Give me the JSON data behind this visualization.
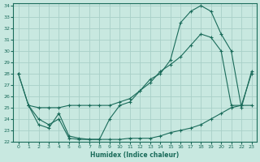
{
  "xlabel": "Humidex (Indice chaleur)",
  "bg_color": "#c8e8e0",
  "grid_color": "#a8d0c8",
  "line_color": "#1a6b5a",
  "xlim": [
    -0.5,
    23.5
  ],
  "ylim": [
    22,
    34.2
  ],
  "yticks": [
    22,
    23,
    24,
    25,
    26,
    27,
    28,
    29,
    30,
    31,
    32,
    33,
    34
  ],
  "xticks": [
    0,
    1,
    2,
    3,
    4,
    5,
    6,
    7,
    8,
    9,
    10,
    11,
    12,
    13,
    14,
    15,
    16,
    17,
    18,
    19,
    20,
    21,
    22,
    23
  ],
  "line1_x": [
    0,
    1,
    2,
    3,
    4,
    5,
    6,
    7,
    8,
    9,
    10,
    11,
    12,
    13,
    14,
    15,
    16,
    17,
    18,
    19,
    20,
    21,
    22,
    23
  ],
  "line1_y": [
    28.0,
    25.2,
    25.0,
    25.0,
    25.0,
    25.2,
    25.2,
    25.2,
    25.2,
    25.2,
    25.5,
    25.8,
    26.5,
    27.2,
    28.2,
    28.8,
    29.5,
    30.5,
    31.5,
    31.2,
    30.0,
    25.2,
    25.2,
    28.0
  ],
  "line2_x": [
    0,
    1,
    2,
    3,
    4,
    5,
    6,
    7,
    8,
    9,
    10,
    11,
    12,
    13,
    14,
    15,
    16,
    17,
    18,
    19,
    20,
    21,
    22,
    23
  ],
  "line2_y": [
    28.0,
    25.2,
    24.0,
    23.5,
    24.0,
    22.3,
    22.2,
    22.2,
    22.2,
    22.2,
    22.2,
    22.3,
    22.3,
    22.3,
    22.5,
    22.8,
    23.0,
    23.2,
    23.5,
    24.0,
    24.5,
    25.0,
    25.2,
    25.2
  ],
  "line3_x": [
    1,
    2,
    3,
    4,
    5,
    6,
    7,
    8,
    9,
    10,
    11,
    12,
    13,
    14,
    15,
    16,
    17,
    18,
    19,
    20,
    21,
    22,
    23
  ],
  "line3_y": [
    25.2,
    23.5,
    23.2,
    24.5,
    22.5,
    22.3,
    22.2,
    22.2,
    24.0,
    25.2,
    25.5,
    26.5,
    27.5,
    28.0,
    29.2,
    32.5,
    33.5,
    34.0,
    33.5,
    31.5,
    30.0,
    25.0,
    28.2
  ]
}
